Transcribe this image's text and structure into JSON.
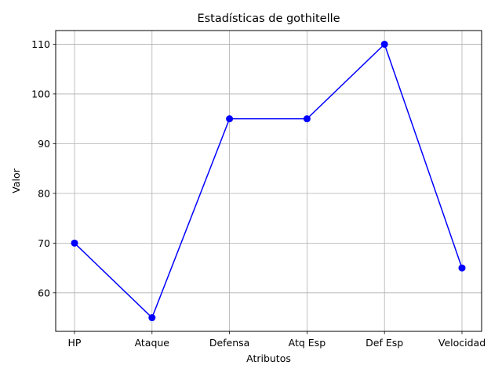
{
  "chart_data": {
    "type": "line",
    "title": "Estadísticas de gothitelle",
    "xlabel": "Atributos",
    "ylabel": "Valor",
    "categories": [
      "HP",
      "Ataque",
      "Defensa",
      "Atq Esp",
      "Def Esp",
      "Velocidad"
    ],
    "series": [
      {
        "values": [
          70,
          55,
          95,
          95,
          110,
          65
        ]
      }
    ],
    "ylim": [
      52.25,
      112.75
    ],
    "yticks": [
      60,
      70,
      80,
      90,
      100,
      110
    ],
    "grid": true,
    "marker": "circle",
    "colors": {
      "line": "#0000ff",
      "grid": "#b0b0b0",
      "axis": "#000000"
    }
  }
}
